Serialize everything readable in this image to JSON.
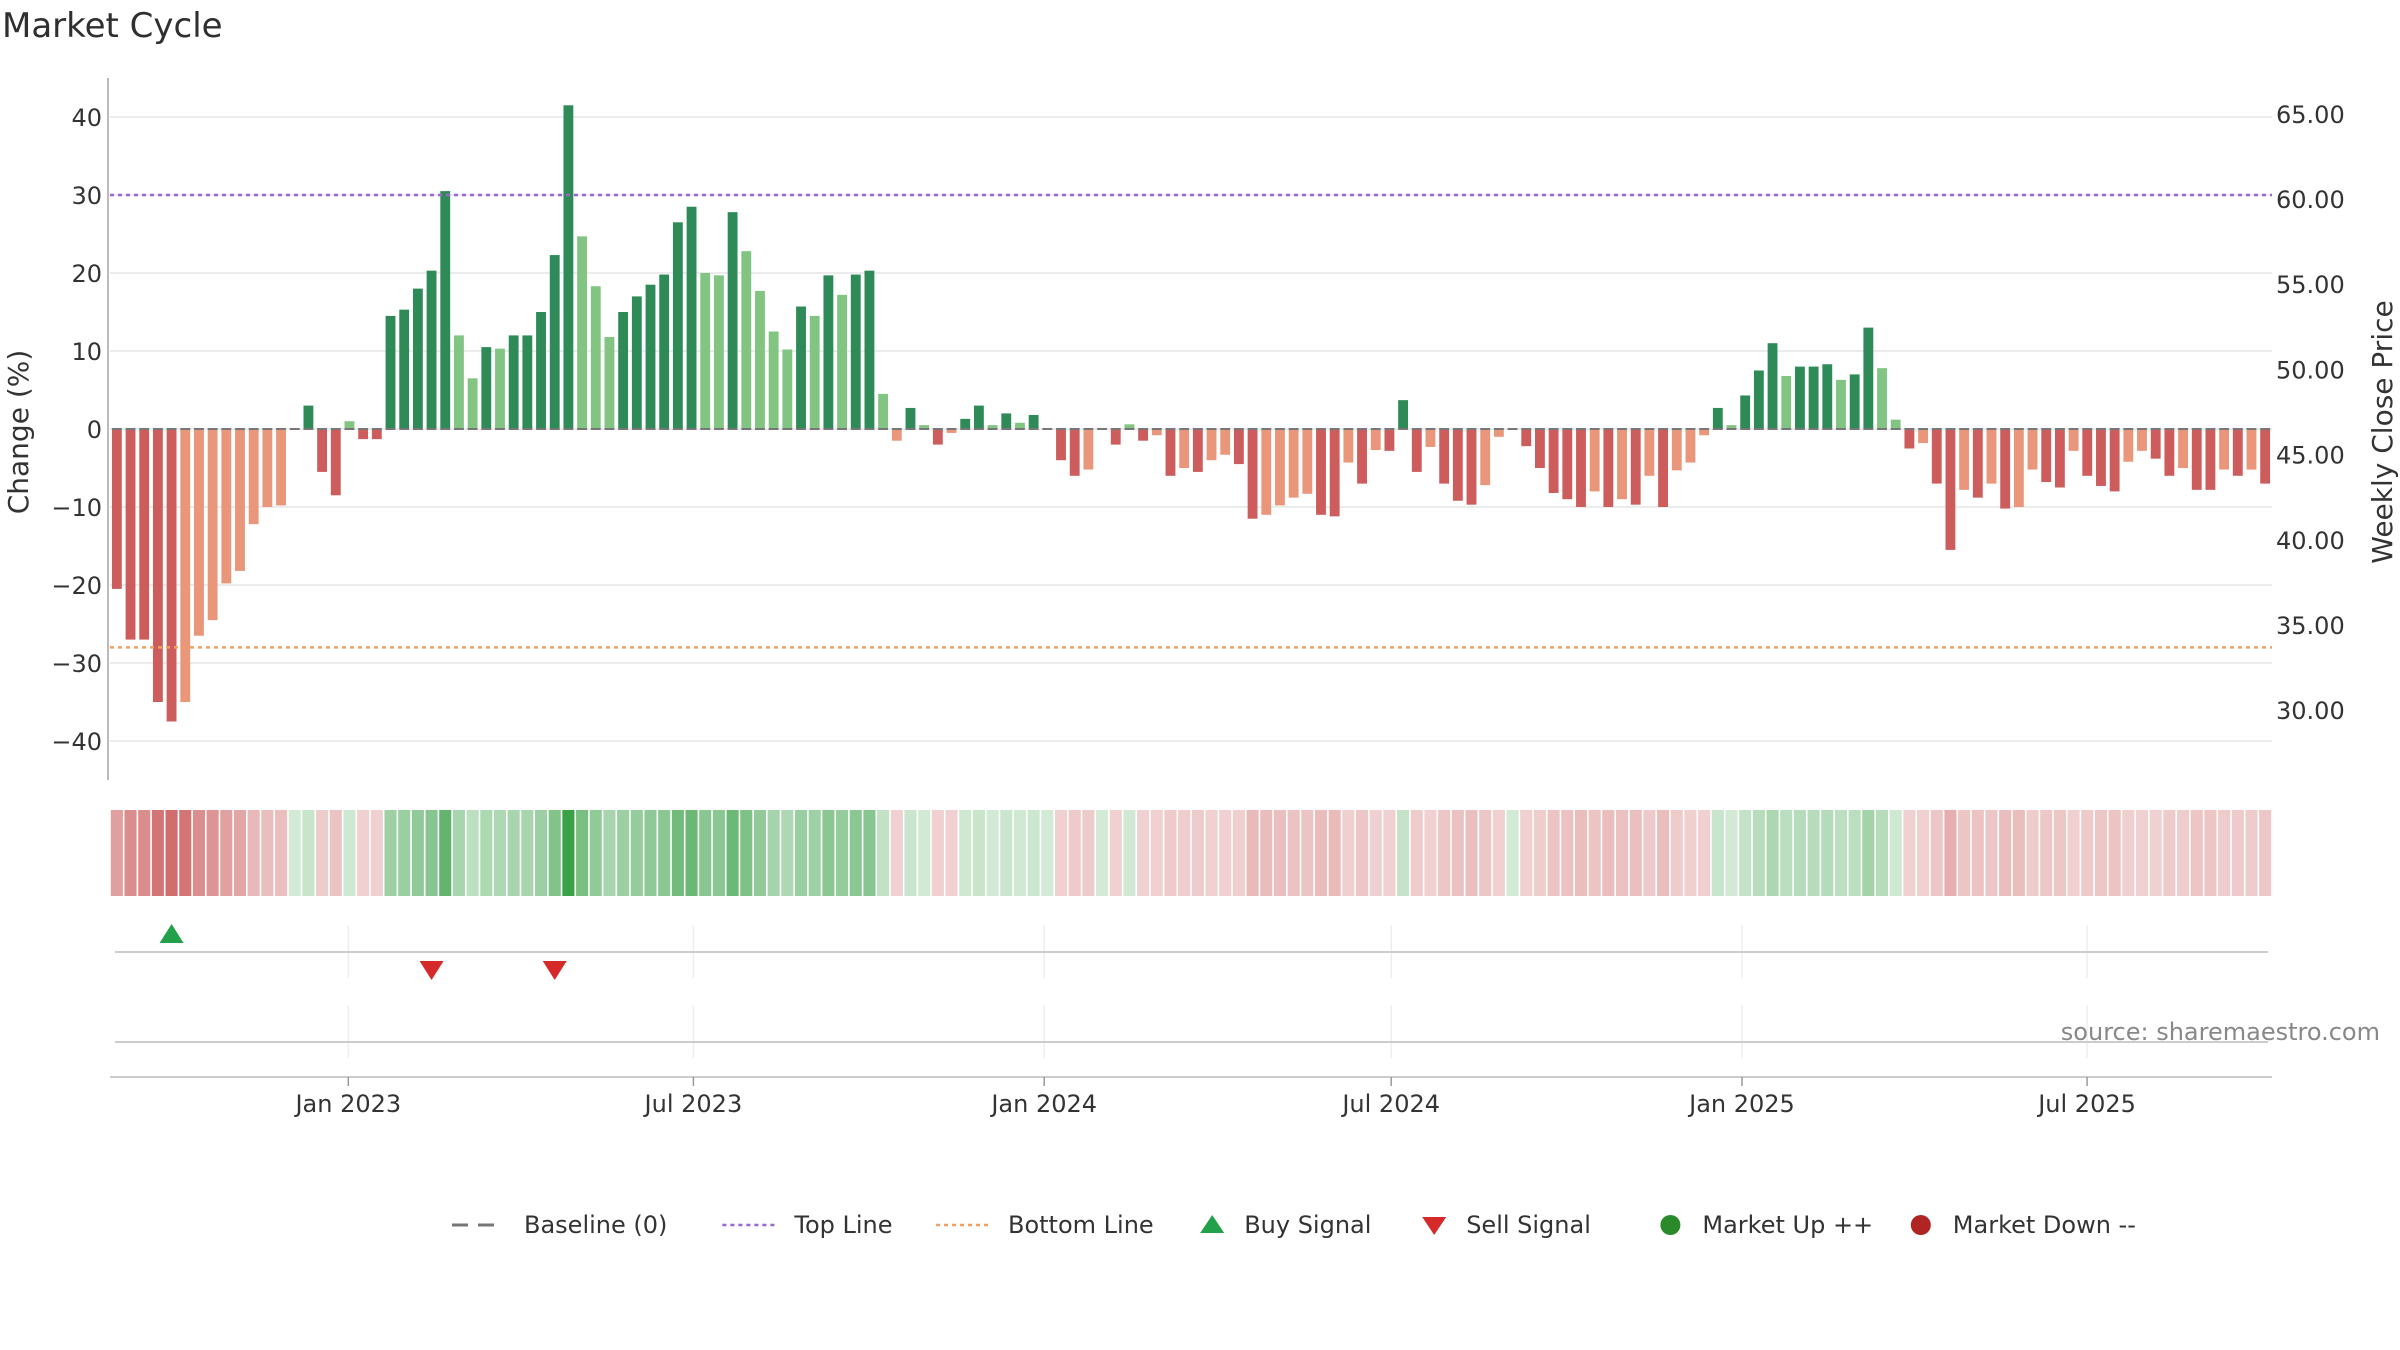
{
  "chart_data": {
    "title": "Market Cycle",
    "type": "bar",
    "ylabel": "Change (%)",
    "y2label": "Weekly Close Price",
    "ylim": [
      -45,
      45
    ],
    "y2lim": [
      25.9,
      67.1
    ],
    "yticks": [
      "40",
      "30",
      "20",
      "10",
      "0",
      "−10",
      "−20",
      "−30",
      "−40"
    ],
    "yticks_values": [
      40,
      30,
      20,
      10,
      0,
      -10,
      -20,
      -30,
      -40
    ],
    "y2ticks": [
      "65.00",
      "60.00",
      "55.00",
      "50.00",
      "45.00",
      "40.00",
      "35.00",
      "30.00"
    ],
    "y2ticks_values": [
      65,
      60,
      55,
      50,
      45,
      40,
      35,
      30
    ],
    "x_start": "2022-08-29",
    "x_end": "2025-10-06",
    "xticks": [
      {
        "label": "Jan 2023",
        "date": "2023-01-01"
      },
      {
        "label": "Jul 2023",
        "date": "2023-07-01"
      },
      {
        "label": "Jan 2024",
        "date": "2024-01-01"
      },
      {
        "label": "Jul 2024",
        "date": "2024-07-01"
      },
      {
        "label": "Jan 2025",
        "date": "2025-01-01"
      },
      {
        "label": "Jul 2025",
        "date": "2025-07-01"
      }
    ],
    "top_line": 30,
    "bottom_line": -28,
    "baseline": 0,
    "values": [
      -20.5,
      -27,
      -27,
      -35,
      -37.5,
      -35,
      -26.5,
      -24.5,
      -19.8,
      -18.2,
      -12.2,
      -10,
      -9.8,
      0,
      3,
      -5.5,
      -8.5,
      1,
      -1.3,
      -1.3,
      14.5,
      15.3,
      18,
      20.3,
      30.5,
      12,
      6.5,
      10.5,
      10.3,
      12,
      12,
      15,
      22.3,
      41.5,
      24.7,
      18.3,
      11.8,
      15,
      17,
      18.5,
      19.8,
      26.5,
      28.5,
      20,
      19.7,
      27.8,
      22.8,
      17.7,
      12.5,
      10.2,
      15.7,
      14.5,
      19.7,
      17.2,
      19.8,
      20.3,
      4.5,
      -1.5,
      2.7,
      0.5,
      -2,
      -0.5,
      1.3,
      3,
      0.5,
      2,
      0.8,
      1.8,
      0,
      -4,
      -6,
      -5.2,
      0,
      -2,
      0.6,
      -1.5,
      -0.8,
      -6,
      -5,
      -5.5,
      -4,
      -3.3,
      -4.5,
      -11.5,
      -11,
      -9.8,
      -8.8,
      -8.3,
      -11,
      -11.2,
      -4.3,
      -7,
      -2.7,
      -2.8,
      3.7,
      -5.5,
      -2.3,
      -7,
      -9.2,
      -9.7,
      -7.2,
      -1,
      0,
      -2.2,
      -5,
      -8.2,
      -9,
      -10,
      -8,
      -10,
      -9,
      -9.7,
      -6,
      -10,
      -5.3,
      -4.3,
      -0.8,
      2.7,
      0.5,
      4.3,
      7.5,
      11,
      6.8,
      8,
      8,
      8.3,
      6.3,
      7,
      13,
      7.8,
      1.2,
      -2.5,
      -1.8,
      -7,
      -15.5,
      -7.8,
      -8.8,
      -7,
      -10.2,
      -10,
      -5.2,
      -6.8,
      -7.5,
      -2.8,
      -6,
      -7.3,
      -8,
      -4.2,
      -2.8,
      -3.8,
      -6,
      -5,
      -7.8,
      -7.8,
      -5.2,
      -6,
      -5.2,
      -7
    ],
    "buy_signals": [
      4
    ],
    "sell_signals": [
      23,
      32
    ],
    "source": "source: sharemaestro.com",
    "legend": [
      {
        "label": "Baseline (0)",
        "marker": "dash",
        "color": "#777777"
      },
      {
        "label": "Top Line",
        "marker": "dotted-line",
        "color": "#9966cc"
      },
      {
        "label": "Bottom Line",
        "marker": "dotted-line",
        "color": "#f0a060"
      },
      {
        "label": "Buy Signal",
        "marker": "triangle-up",
        "color": "#22a04a"
      },
      {
        "label": "Sell Signal",
        "marker": "triangle-down",
        "color": "#d62a2a"
      },
      {
        "label": "Market Up ++",
        "marker": "circle",
        "color": "#2a8a2a"
      },
      {
        "label": "Market Down --",
        "marker": "circle",
        "color": "#b02424"
      }
    ],
    "colors": {
      "strong_up": "#2e8b57",
      "weak_up": "#82c482",
      "strong_down": "#cd5c5c",
      "weak_down": "#e9967a",
      "top_line": "#9966cc",
      "bottom_line": "#f0a060"
    }
  }
}
